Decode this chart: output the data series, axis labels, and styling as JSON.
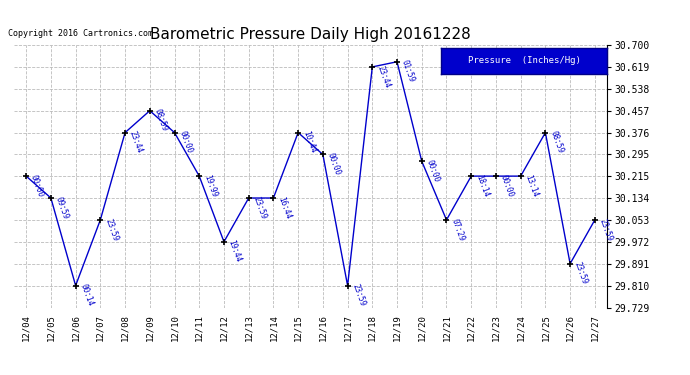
{
  "title": "Barometric Pressure Daily High 20161228",
  "copyright": "Copyright 2016 Cartronics.com",
  "legend_label": "Pressure  (Inches/Hg)",
  "x_labels": [
    "12/04",
    "12/05",
    "12/06",
    "12/07",
    "12/08",
    "12/09",
    "12/10",
    "12/11",
    "12/12",
    "12/13",
    "12/14",
    "12/15",
    "12/16",
    "12/17",
    "12/18",
    "12/19",
    "12/20",
    "12/21",
    "12/22",
    "12/23",
    "12/24",
    "12/25",
    "12/26",
    "12/27"
  ],
  "y_values": [
    30.215,
    30.134,
    29.81,
    30.053,
    30.376,
    30.457,
    30.376,
    30.215,
    29.972,
    30.134,
    30.134,
    30.376,
    30.295,
    29.81,
    30.619,
    30.638,
    30.27,
    30.053,
    30.215,
    30.215,
    30.215,
    30.376,
    29.891,
    30.053
  ],
  "time_labels": [
    "00:00",
    "09:59",
    "00:14",
    "23:59",
    "23:44",
    "08:59",
    "00:00",
    "19:99",
    "19:44",
    "23:59",
    "16:44",
    "10:44",
    "00:00",
    "23:59",
    "23:44",
    "01:59",
    "00:00",
    "07:29",
    "18:14",
    "00:00",
    "13:14",
    "08:59",
    "23:59",
    "23:59"
  ],
  "y_ticks": [
    29.729,
    29.81,
    29.891,
    29.972,
    30.053,
    30.134,
    30.215,
    30.295,
    30.376,
    30.457,
    30.538,
    30.619,
    30.7
  ],
  "y_min": 29.729,
  "y_max": 30.7,
  "line_color": "#0000CC",
  "marker_color": "#000000",
  "bg_color": "#ffffff",
  "grid_color": "#bbbbbb",
  "title_color": "#000000",
  "copyright_color": "#000000",
  "label_color": "#0000CC",
  "legend_bg": "#0000CC",
  "legend_text_color": "#ffffff"
}
